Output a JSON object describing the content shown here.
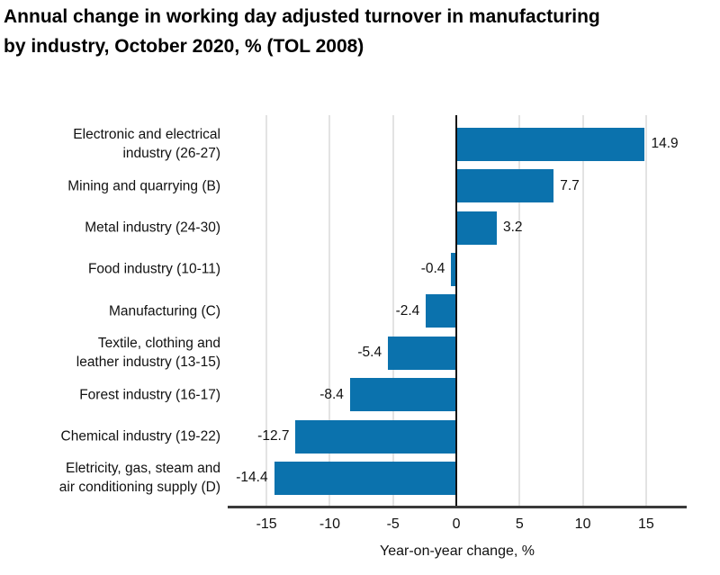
{
  "title": {
    "line1": "Annual change in working day adjusted turnover in manufacturing",
    "line2": "by industry, October 2020, % (TOL 2008)"
  },
  "chart_data": {
    "type": "bar",
    "orientation": "horizontal",
    "title": "Annual change in working day adjusted turnover in manufacturing by industry, October 2020, % (TOL 2008)",
    "categories": [
      "Electronic and electrical industry (26-27)",
      "Mining and quarrying (B)",
      "Metal industry (24-30)",
      "Food industry (10-11)",
      "Manufacturing (C)",
      "Textile, clothing and leather industry (13-15)",
      "Forest industry (16-17)",
      "Chemical industry (19-22)",
      "Eletricity, gas, steam and air conditioning supply (D)"
    ],
    "category_display_lines": [
      [
        "Electronic and electrical",
        "industry (26-27)"
      ],
      [
        "Mining and quarrying (B)"
      ],
      [
        "Metal industry (24-30)"
      ],
      [
        "Food industry (10-11)"
      ],
      [
        "Manufacturing (C)"
      ],
      [
        "Textile, clothing and",
        "leather industry (13-15)"
      ],
      [
        "Forest industry (16-17)"
      ],
      [
        "Chemical industry (19-22)"
      ],
      [
        "Eletricity, gas, steam and",
        "air conditioning supply (D)"
      ]
    ],
    "values": [
      14.9,
      7.7,
      3.2,
      -0.4,
      -2.4,
      -5.4,
      -8.4,
      -12.7,
      -14.4
    ],
    "value_labels": [
      "14.9",
      "7.7",
      "3.2",
      "-0.4",
      "-2.4",
      "-5.4",
      "-8.4",
      "-12.7",
      "-14.4"
    ],
    "xlabel": "Year-on-year change, %",
    "xticks": [
      -15,
      -10,
      -5,
      0,
      5,
      10,
      15
    ],
    "xlim": [
      -18.07,
      18.21
    ],
    "grid": "vertical-gridlines-on",
    "legend": "none",
    "colors": {
      "bar": "#0b72ad",
      "gridline": "#e3e3e3",
      "zero_line": "#111111",
      "axis_line": "#3a3a3a",
      "label_text": "#111111",
      "title_text": "#000000",
      "background": "#ffffff"
    }
  }
}
